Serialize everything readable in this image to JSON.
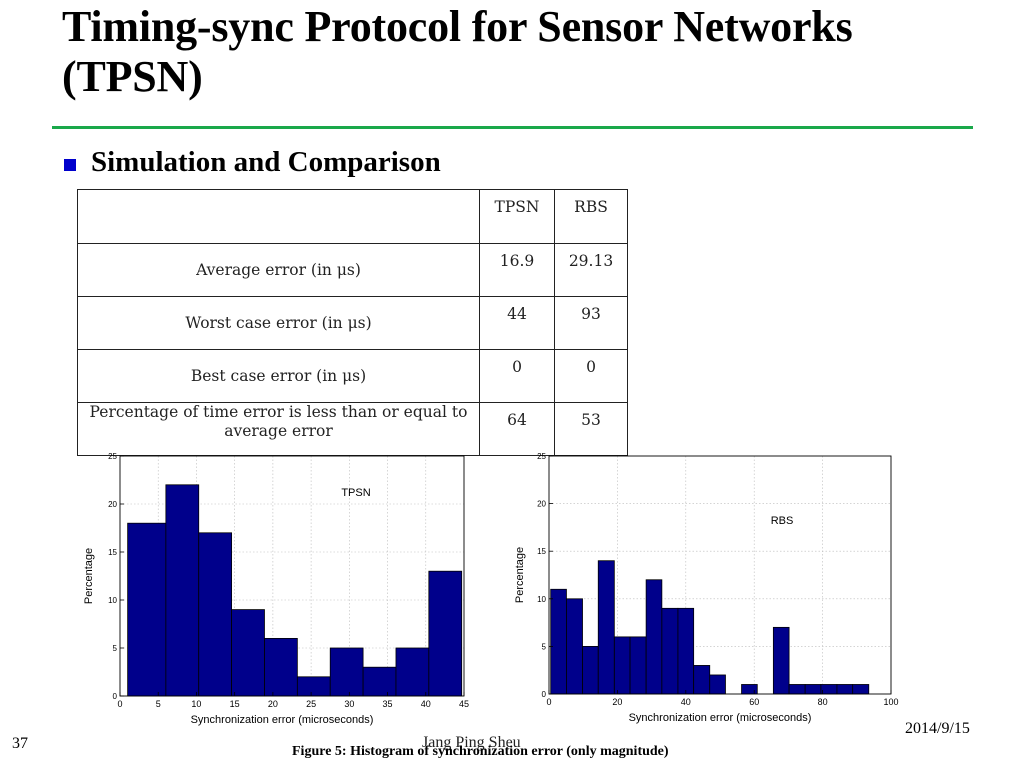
{
  "slide": {
    "title": "Timing-sync Protocol for Sensor Networks (TPSN)",
    "bullet": "Simulation and Comparison",
    "slide_number": "37",
    "author": "Jang Ping Sheu",
    "date": "2014/9/15",
    "caption": "Figure 5: Histogram of synchronization error (only magnitude)",
    "accent_color": "#1aa84a",
    "bullet_color": "#0000cc"
  },
  "table": {
    "headers": [
      "",
      "TPSN",
      "RBS"
    ],
    "rows": [
      {
        "label": "Average error (in μs)",
        "tpsn": "16.9",
        "rbs": "29.13"
      },
      {
        "label": "Worst case error (in μs)",
        "tpsn": "44",
        "rbs": "93"
      },
      {
        "label": "Best case error (in μs)",
        "tpsn": "0",
        "rbs": "0"
      },
      {
        "label": "Percentage of time error is less than or equal to average error",
        "tpsn": "64",
        "rbs": "53"
      }
    ]
  },
  "chart_data": [
    {
      "type": "bar",
      "annotation": "TPSN",
      "xlabel": "Synchronization error (microseconds)",
      "ylabel": "Percentage",
      "xlim": [
        0,
        45
      ],
      "ylim": [
        0,
        25
      ],
      "xticks": [
        0,
        5,
        10,
        15,
        20,
        25,
        30,
        35,
        40,
        45
      ],
      "yticks": [
        0,
        5,
        10,
        15,
        20,
        25
      ],
      "grid": true,
      "bar_color": "#00008b",
      "bins": [
        {
          "x0": 1,
          "x1": 6,
          "value": 18
        },
        {
          "x0": 6,
          "x1": 10.3,
          "value": 22
        },
        {
          "x0": 10.3,
          "x1": 14.6,
          "value": 17
        },
        {
          "x0": 14.6,
          "x1": 18.9,
          "value": 9
        },
        {
          "x0": 18.9,
          "x1": 23.2,
          "value": 6
        },
        {
          "x0": 23.2,
          "x1": 27.5,
          "value": 2
        },
        {
          "x0": 27.5,
          "x1": 31.8,
          "value": 5
        },
        {
          "x0": 31.8,
          "x1": 36.1,
          "value": 3
        },
        {
          "x0": 36.1,
          "x1": 40.4,
          "value": 5
        },
        {
          "x0": 40.4,
          "x1": 44.7,
          "value": 13
        }
      ]
    },
    {
      "type": "bar",
      "annotation": "RBS",
      "xlabel": "Synchronization error (microseconds)",
      "ylabel": "Percentage",
      "xlim": [
        0,
        100
      ],
      "ylim": [
        0,
        25
      ],
      "xticks": [
        0,
        20,
        40,
        60,
        80,
        100
      ],
      "yticks": [
        0,
        5,
        10,
        15,
        20,
        25
      ],
      "grid": true,
      "bar_color": "#00008b",
      "bins": [
        {
          "x0": 0.5,
          "x1": 5.1,
          "value": 11
        },
        {
          "x0": 5.1,
          "x1": 9.8,
          "value": 10
        },
        {
          "x0": 9.8,
          "x1": 14.4,
          "value": 5
        },
        {
          "x0": 14.4,
          "x1": 19.1,
          "value": 14
        },
        {
          "x0": 19.1,
          "x1": 23.7,
          "value": 6
        },
        {
          "x0": 23.7,
          "x1": 28.4,
          "value": 6
        },
        {
          "x0": 28.4,
          "x1": 33.0,
          "value": 12
        },
        {
          "x0": 33.0,
          "x1": 37.7,
          "value": 9
        },
        {
          "x0": 37.7,
          "x1": 42.3,
          "value": 9
        },
        {
          "x0": 42.3,
          "x1": 47.0,
          "value": 3
        },
        {
          "x0": 47.0,
          "x1": 51.6,
          "value": 2
        },
        {
          "x0": 56.3,
          "x1": 60.9,
          "value": 1
        },
        {
          "x0": 65.6,
          "x1": 70.2,
          "value": 7
        },
        {
          "x0": 70.2,
          "x1": 74.9,
          "value": 1
        },
        {
          "x0": 74.9,
          "x1": 79.5,
          "value": 1
        },
        {
          "x0": 79.5,
          "x1": 84.2,
          "value": 1
        },
        {
          "x0": 84.2,
          "x1": 88.8,
          "value": 1
        },
        {
          "x0": 88.8,
          "x1": 93.5,
          "value": 1
        }
      ]
    }
  ]
}
